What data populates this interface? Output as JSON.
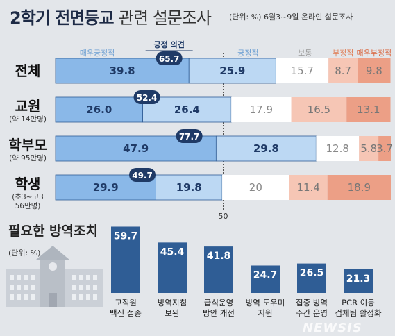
{
  "header": {
    "title_main": "2학기 전면등교",
    "title_rest": "관련 설문조사",
    "subtitle": "(단위: %)  6월3~9일 온라인 설문조사"
  },
  "chart_data": [
    {
      "type": "bar",
      "stacked": true,
      "orientation": "horizontal",
      "series_labels": [
        "매우긍정적",
        "긍정적",
        "보통",
        "부정적",
        "매우부정적"
      ],
      "positive_header": "긍정 의견",
      "midline_label": "50",
      "rows": [
        {
          "label": "전체",
          "sublabel": "",
          "values": [
            39.8,
            25.9,
            15.7,
            8.7,
            9.8
          ],
          "positive": "65.7"
        },
        {
          "label": "교원",
          "sublabel": "(약 14만명)",
          "values": [
            26.0,
            26.4,
            17.9,
            16.5,
            13.1
          ],
          "positive": "52.4"
        },
        {
          "label": "학부모",
          "sublabel": "(약 95만명)",
          "values": [
            47.9,
            29.8,
            12.8,
            5.8,
            3.7
          ],
          "positive": "77.7"
        },
        {
          "label": "학생",
          "sublabel": "(초3~고3 56만명)",
          "values": [
            29.9,
            19.8,
            20,
            11.4,
            18.9
          ],
          "positive": "49.7"
        }
      ],
      "colors": [
        "#8ab8e8",
        "#bcd8f3",
        "#ffffff",
        "#f6c6b5",
        "#ec9f86"
      ]
    },
    {
      "type": "bar",
      "title": "필요한 방역조치",
      "unit": "(단위: %)",
      "categories": [
        "교직원 백신 접종",
        "방역지침 보완",
        "급식운영 방안 개선",
        "방역 도우미 지원",
        "집중 방역 주간 운영",
        "PCR 이동 검체팀 활성화"
      ],
      "category_lines": [
        [
          "교직원",
          "백신 접종"
        ],
        [
          "방역지침",
          "보완"
        ],
        [
          "급식운영",
          "방안 개선"
        ],
        [
          "방역 도우미",
          "지원"
        ],
        [
          "집중 방역",
          "주간 운영"
        ],
        [
          "PCR 이동",
          "검체팀 활성화"
        ]
      ],
      "values": [
        59.7,
        45.4,
        41.8,
        24.7,
        26.5,
        21.3
      ],
      "color": "#2f5d95"
    }
  ],
  "watermark": "NEWSIS"
}
